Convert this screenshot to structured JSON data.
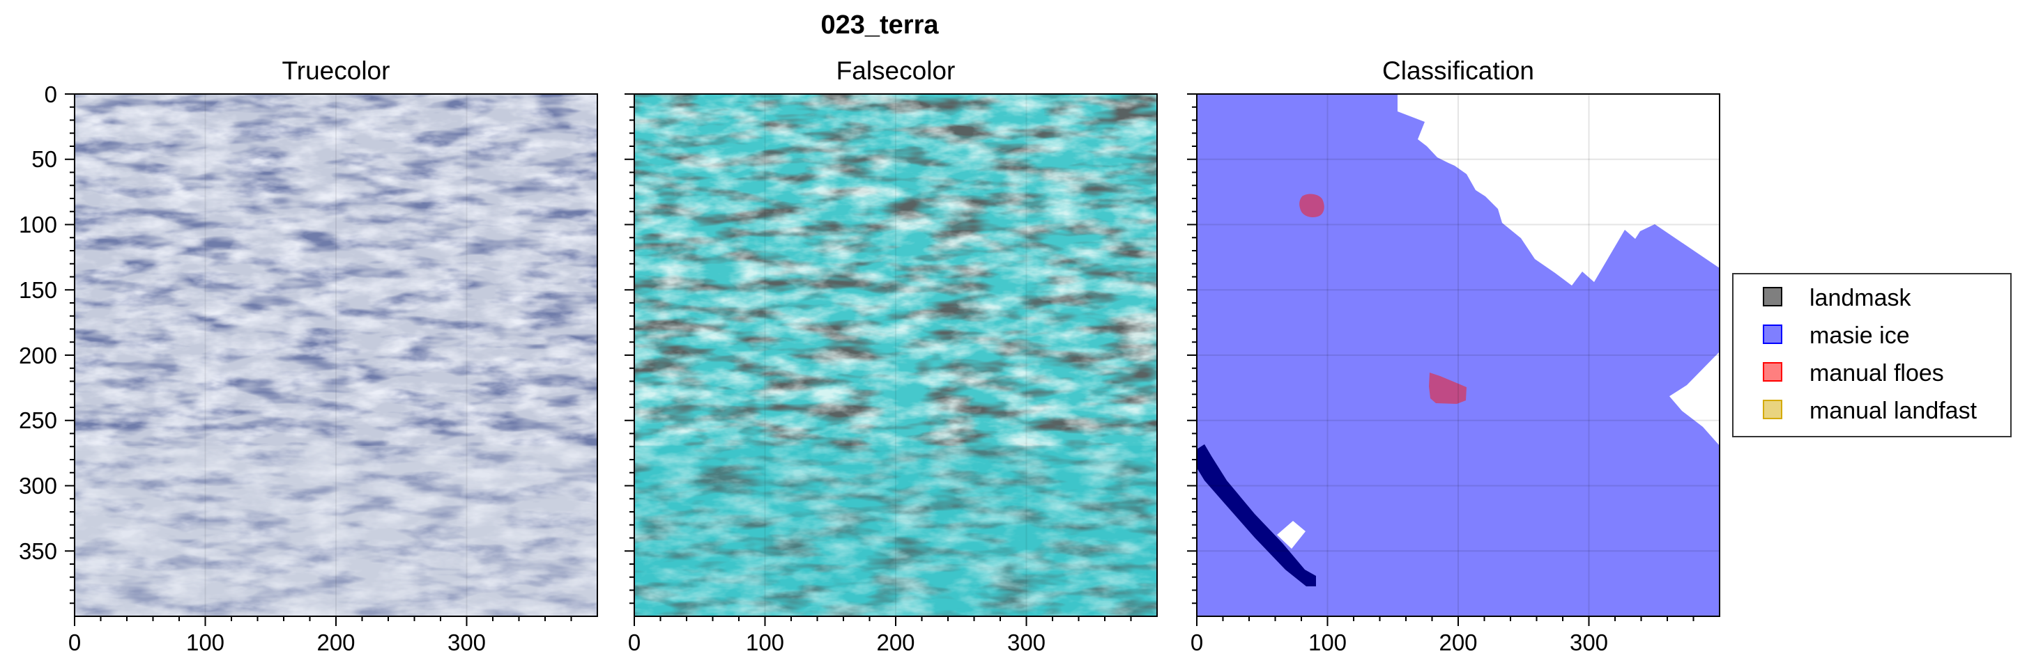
{
  "figure": {
    "title": "023_terra"
  },
  "panels": [
    {
      "title": "Truecolor"
    },
    {
      "title": "Falsecolor"
    },
    {
      "title": "Classification"
    }
  ],
  "axes": {
    "x_ticks": [
      "0",
      "100",
      "200",
      "300"
    ],
    "y_ticks": [
      "0",
      "50",
      "100",
      "150",
      "200",
      "250",
      "300",
      "350"
    ]
  },
  "legend": {
    "placement": "right",
    "items": [
      {
        "label": "landmask",
        "color": "#000000"
      },
      {
        "label": "masie ice",
        "color": "#0000ff"
      },
      {
        "label": "manual floes",
        "color": "#ff0000"
      },
      {
        "label": "manual landfast",
        "color": "#d4aa00"
      }
    ]
  },
  "colors": {
    "masie_ice_fill": "#8080ff",
    "floe_fill": "#c04a85",
    "landfast_strip": "#000080",
    "truecolor_base": "#c9cfe0",
    "falsecolor_base": "#4fd0d0"
  }
}
